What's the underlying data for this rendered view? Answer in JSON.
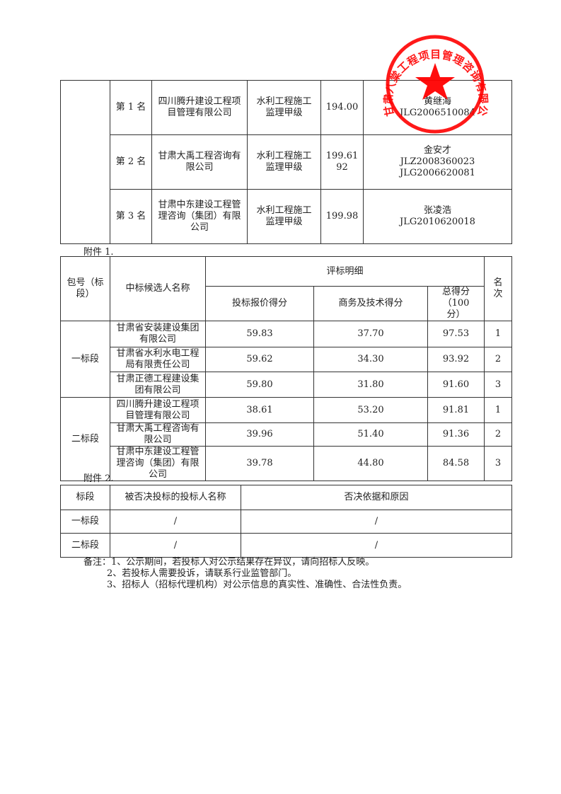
{
  "table1": {
    "rows": [
      {
        "rank": "第 1 名",
        "company": "四川腾升建设工程项目管理有限公司",
        "qualification": "水利工程施工监理甲级",
        "price": "194.00",
        "person": [
          "黄继海",
          "JLG2006510084"
        ]
      },
      {
        "rank": "第 2 名",
        "company": "甘肃大禹工程咨询有限公司",
        "qualification": "水利工程施工监理甲级",
        "price": "199.6192",
        "person": [
          "金安才",
          "JLZ2008360023",
          "JLG2006620081"
        ]
      },
      {
        "rank": "第 3 名",
        "company": "甘肃中东建设工程管理咨询（集团）有限公司",
        "qualification": "水利工程施工监理甲级",
        "price": "199.98",
        "person": [
          "张凌浩",
          "JLG2010620018"
        ]
      }
    ]
  },
  "attachment1_label": "附件 1.",
  "table2": {
    "headers": {
      "section": "包号（标段）",
      "candidate": "中标候选人名称",
      "detail": "评标明细",
      "price_score": "投标报价得分",
      "tech_score": "商务及技术得分",
      "total": "总得分（100 分）",
      "rank": "名次"
    },
    "groups": [
      {
        "section": "一标段",
        "rows": [
          {
            "candidate": "甘肃省安装建设集团有限公司",
            "price_score": "59.83",
            "tech_score": "37.70",
            "total": "97.53",
            "rank": "1"
          },
          {
            "candidate": "甘肃省水利水电工程局有限责任公司",
            "price_score": "59.62",
            "tech_score": "34.30",
            "total": "93.92",
            "rank": "2"
          },
          {
            "candidate": "甘肃正德工程建设集团有限公司",
            "price_score": "59.80",
            "tech_score": "31.80",
            "total": "91.60",
            "rank": "3"
          }
        ]
      },
      {
        "section": "二标段",
        "rows": [
          {
            "candidate": "四川腾升建设工程项目管理有限公司",
            "price_score": "38.61",
            "tech_score": "53.20",
            "total": "91.81",
            "rank": "1"
          },
          {
            "candidate": "甘肃大禹工程咨询有限公司",
            "price_score": "39.96",
            "tech_score": "51.40",
            "total": "91.36",
            "rank": "2"
          },
          {
            "candidate": "甘肃中东建设工程管理咨询（集团）有限公司",
            "price_score": "39.78",
            "tech_score": "44.80",
            "total": "84.58",
            "rank": "3"
          }
        ]
      }
    ]
  },
  "attachment2_label": "附件 2.",
  "table3": {
    "headers": {
      "section": "标段",
      "name": "被否决投标的投标人名称",
      "reason": "否决依据和原因"
    },
    "rows": [
      {
        "section": "一标段",
        "name": "/",
        "reason": "/"
      },
      {
        "section": "二标段",
        "name": "/",
        "reason": "/"
      }
    ]
  },
  "notes": [
    "备注：1、公示期间，若投标人对公示结果存在异议，请向招标人反映。",
    "2、若投标人需要投诉，请联系行业监管部门。",
    "3、招标人（招标代理机构）对公示信息的真实性、准确性、合法性负责。"
  ],
  "stamp": {
    "text": "甘肃八棠工程项目管理咨询有限公司",
    "color": "#ff0000",
    "icon": "star-icon"
  }
}
